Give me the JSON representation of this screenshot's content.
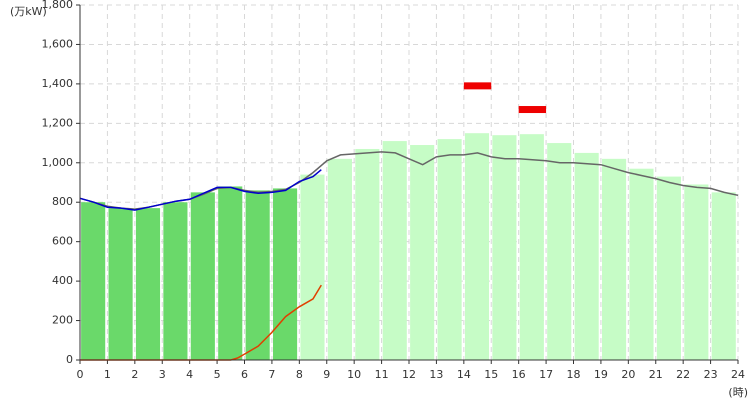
{
  "chart_data": {
    "type": "bar",
    "ylabel": "(万kW)",
    "xlabel": "(時)",
    "xlim": [
      0,
      24
    ],
    "ylim": [
      0,
      1800
    ],
    "xticks": [
      0,
      1,
      2,
      3,
      4,
      5,
      6,
      7,
      8,
      9,
      10,
      11,
      12,
      13,
      14,
      15,
      16,
      17,
      18,
      19,
      20,
      21,
      22,
      23,
      24
    ],
    "yticks": [
      0,
      200,
      400,
      600,
      800,
      {
        "value": 1000,
        "label": "1,000"
      },
      {
        "value": 1200,
        "label": "1,200"
      },
      {
        "value": 1400,
        "label": "1,400"
      },
      {
        "value": 1600,
        "label": "1,600"
      },
      {
        "value": 1800,
        "label": "1,800"
      }
    ],
    "grid": true,
    "bars": [
      {
        "color": "#6ad96a",
        "x": [
          0,
          1,
          2,
          3,
          4,
          5,
          6,
          7
        ],
        "values": [
          800,
          770,
          770,
          800,
          850,
          880,
          860,
          870
        ]
      },
      {
        "color": "#c6fcc6",
        "x": [
          8,
          9,
          10,
          11,
          12,
          13,
          14,
          15,
          16,
          17,
          18,
          19,
          20,
          21,
          22,
          23
        ],
        "values": [
          940,
          1020,
          1070,
          1110,
          1090,
          1120,
          1150,
          1140,
          1145,
          1100,
          1050,
          1020,
          970,
          930,
          890,
          850
        ]
      }
    ],
    "markers": {
      "color": "#ee0000",
      "x": [
        14,
        16
      ],
      "values": [
        1390,
        1270
      ]
    },
    "lines": [
      {
        "color": "#666666",
        "x": [
          0,
          0.5,
          1,
          1.5,
          2,
          2.5,
          3,
          3.5,
          4,
          4.5,
          5,
          5.5,
          6,
          6.5,
          7,
          7.5,
          8,
          8.5,
          9,
          9.5,
          10,
          10.5,
          11,
          11.5,
          12,
          12.5,
          13,
          13.5,
          14,
          14.5,
          15,
          15.5,
          16,
          16.5,
          17,
          17.5,
          18,
          18.5,
          19,
          19.5,
          20,
          20.5,
          21,
          21.5,
          22,
          22.5,
          23,
          23.5,
          24
        ],
        "values": [
          820,
          800,
          780,
          770,
          765,
          775,
          790,
          805,
          815,
          840,
          870,
          875,
          860,
          850,
          855,
          865,
          900,
          950,
          1010,
          1040,
          1045,
          1050,
          1055,
          1050,
          1020,
          990,
          1030,
          1040,
          1040,
          1050,
          1030,
          1020,
          1020,
          1015,
          1010,
          1000,
          1000,
          995,
          990,
          970,
          950,
          935,
          920,
          900,
          885,
          875,
          870,
          850,
          835
        ]
      },
      {
        "color": "#0000cc",
        "x": [
          0,
          0.5,
          1,
          1.5,
          2,
          2.5,
          3,
          3.5,
          4,
          4.5,
          5,
          5.5,
          6,
          6.5,
          7,
          7.5,
          8,
          8.5,
          8.8
        ],
        "values": [
          820,
          800,
          775,
          770,
          760,
          775,
          790,
          805,
          815,
          845,
          875,
          875,
          855,
          845,
          850,
          860,
          905,
          930,
          965
        ]
      },
      {
        "color": "#e04000",
        "x": [
          0,
          1,
          2,
          3,
          4,
          5,
          5.5,
          5.75,
          6,
          6.5,
          7,
          7.5,
          8,
          8.5,
          8.8
        ],
        "values": [
          0,
          0,
          0,
          0,
          0,
          0,
          0,
          10,
          30,
          70,
          140,
          220,
          270,
          310,
          380
        ]
      }
    ]
  }
}
